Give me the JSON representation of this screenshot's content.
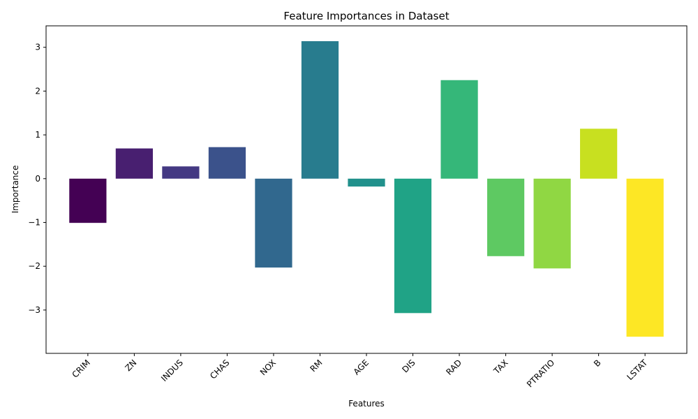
{
  "chart_data": {
    "type": "bar",
    "title": "Feature Importances in Dataset",
    "xlabel": "Features",
    "ylabel": "Importance",
    "categories": [
      "CRIM",
      "ZN",
      "INDUS",
      "CHAS",
      "NOX",
      "RM",
      "AGE",
      "DIS",
      "RAD",
      "TAX",
      "PTRATIO",
      "B",
      "LSTAT"
    ],
    "values": [
      -1.01,
      0.69,
      0.28,
      0.72,
      -2.03,
      3.14,
      -0.18,
      -3.07,
      2.25,
      -1.77,
      -2.05,
      1.14,
      -3.61
    ],
    "colors": [
      "#440154",
      "#481f70",
      "#443983",
      "#3b528b",
      "#31688e",
      "#287c8e",
      "#21918c",
      "#20a386",
      "#35b779",
      "#5ec962",
      "#90d743",
      "#c8e020",
      "#fde725"
    ],
    "ylim": [
      -3.99,
      3.49
    ],
    "yticks": [
      -3,
      -2,
      -1,
      0,
      1,
      2,
      3
    ],
    "ytick_labels": [
      "−3",
      "−2",
      "−1",
      "0",
      "1",
      "2",
      "3"
    ],
    "grid": false,
    "legend": "none"
  }
}
